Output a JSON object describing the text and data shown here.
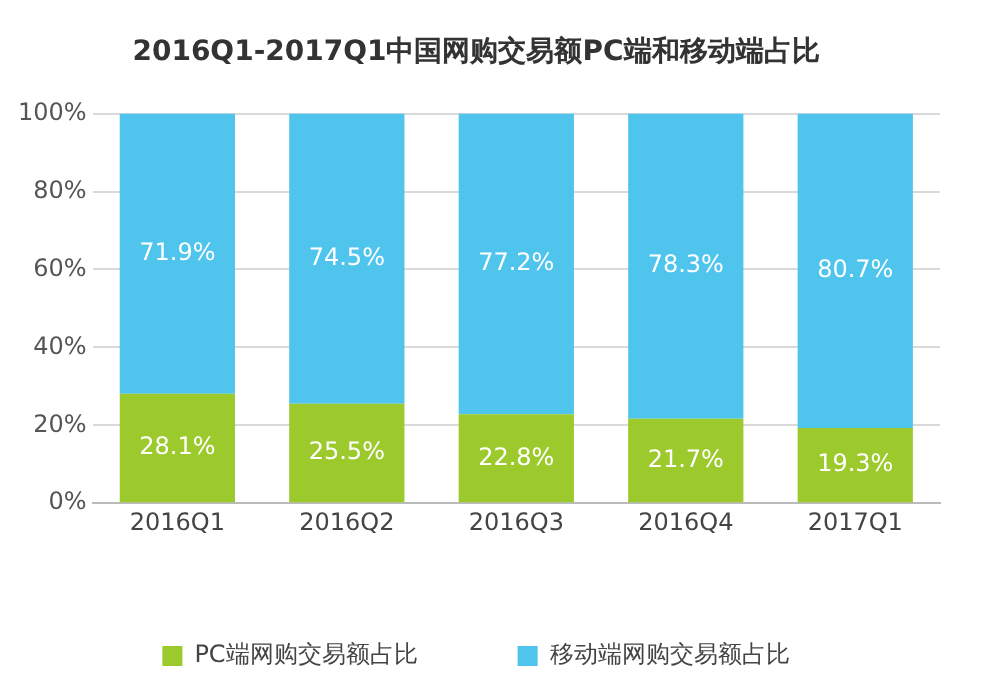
{
  "chart_data": {
    "type": "bar",
    "title": "2016Q1-2017Q1中国网购交易额PC端和移动端占比",
    "categories": [
      "2016Q1",
      "2016Q2",
      "2016Q3",
      "2016Q4",
      "2017Q1"
    ],
    "stacked": true,
    "series": [
      {
        "name": "PC端网购交易额占比",
        "color": "#9cc92c",
        "values": [
          28.1,
          25.5,
          22.8,
          21.7,
          19.3
        ],
        "value_labels": [
          "28.1%",
          "25.5%",
          "22.8%",
          "21.7%",
          "19.3%"
        ]
      },
      {
        "name": "移动端网购交易额占比",
        "color": "#4fc4ec",
        "values": [
          71.9,
          74.5,
          77.2,
          78.3,
          80.7
        ],
        "value_labels": [
          "71.9%",
          "74.5%",
          "77.2%",
          "78.3%",
          "80.7%"
        ]
      }
    ],
    "ylim": [
      0,
      100
    ],
    "yticks": [
      {
        "value": 0,
        "label": "0%"
      },
      {
        "value": 20,
        "label": "20%"
      },
      {
        "value": 40,
        "label": "40%"
      },
      {
        "value": 60,
        "label": "60%"
      },
      {
        "value": 80,
        "label": "80%"
      },
      {
        "value": 100,
        "label": "100%"
      }
    ],
    "grid": "y",
    "legend": "bottom"
  }
}
